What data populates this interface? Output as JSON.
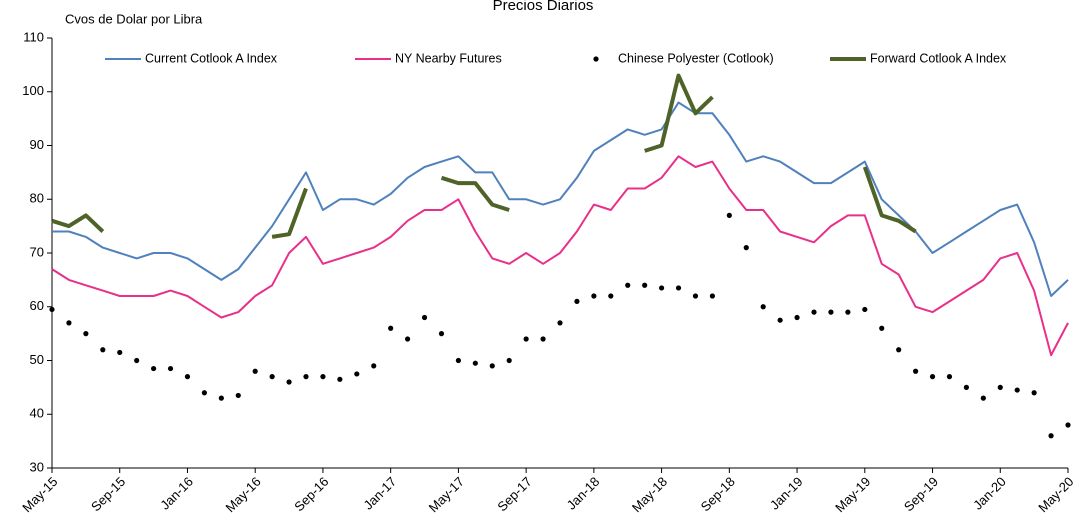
{
  "chart_data": {
    "type": "line",
    "title": "Precios Diarios",
    "y_label": "Cvos de Dolar por Libra",
    "categories": [
      "May-15",
      null,
      null,
      null,
      "Sep-15",
      null,
      null,
      null,
      "Jan-16",
      null,
      null,
      null,
      "May-16",
      null,
      null,
      null,
      "Sep-16",
      null,
      null,
      null,
      "Jan-17",
      null,
      null,
      null,
      "May-17",
      null,
      null,
      null,
      "Sep-17",
      null,
      null,
      null,
      "Jan-18",
      null,
      null,
      null,
      "May-18",
      null,
      null,
      null,
      "Sep-18",
      null,
      null,
      null,
      "Jan-19",
      null,
      null,
      null,
      "May-19",
      null,
      null,
      null,
      "Sep-19",
      null,
      null,
      null,
      "Jan-20",
      null,
      null,
      null,
      "May-20"
    ],
    "ylim": [
      30,
      110
    ],
    "yticks": [
      30,
      40,
      50,
      60,
      70,
      80,
      90,
      100,
      110
    ],
    "grid": false,
    "legend": "top",
    "series": [
      {
        "name": "Current Cotlook A Index",
        "color": "#4f81bd",
        "style": "line",
        "values": [
          74,
          74,
          73,
          71,
          70,
          69,
          70,
          70,
          69,
          67,
          65,
          67,
          71,
          75,
          80,
          85,
          78,
          80,
          80,
          79,
          81,
          84,
          86,
          87,
          88,
          85,
          85,
          80,
          80,
          79,
          80,
          84,
          89,
          91,
          93,
          92,
          93,
          98,
          96,
          96,
          92,
          87,
          88,
          87,
          85,
          83,
          83,
          85,
          87,
          80,
          77,
          74,
          70,
          72,
          74,
          76,
          78,
          79,
          72,
          62,
          65
        ]
      },
      {
        "name": "NY Nearby Futures",
        "color": "#e8308a",
        "style": "line",
        "values": [
          67,
          65,
          64,
          63,
          62,
          62,
          62,
          63,
          62,
          60,
          58,
          59,
          62,
          64,
          70,
          73,
          68,
          69,
          70,
          71,
          73,
          76,
          78,
          78,
          80,
          74,
          69,
          68,
          70,
          68,
          70,
          74,
          79,
          78,
          82,
          82,
          84,
          88,
          86,
          87,
          82,
          78,
          78,
          74,
          73,
          72,
          75,
          77,
          77,
          68,
          66,
          60,
          59,
          61,
          63,
          65,
          69,
          70,
          63,
          51,
          57
        ]
      },
      {
        "name": "Chinese Polyester (Cotlook)",
        "color": "#000000",
        "style": "points",
        "values": [
          59.5,
          57,
          55,
          52,
          51.5,
          50,
          48.5,
          48.5,
          47,
          44,
          43,
          43.5,
          48,
          47,
          46,
          47,
          47,
          46.5,
          47.5,
          49,
          56,
          54,
          58,
          55,
          50,
          49.5,
          49,
          50,
          54,
          54,
          57,
          61,
          62,
          62,
          64,
          64,
          63.5,
          63.5,
          62,
          62,
          77,
          71,
          60,
          57.5,
          58,
          59,
          59,
          59,
          59.5,
          56,
          52,
          48,
          47,
          47,
          45,
          43,
          45,
          44.5,
          44,
          36,
          38
        ]
      },
      {
        "name": "Forward Cotlook A Index",
        "color": "#4f6228",
        "style": "thick-line",
        "values": [
          76,
          75,
          77,
          74,
          null,
          null,
          null,
          null,
          null,
          null,
          null,
          null,
          null,
          73,
          73.5,
          82,
          null,
          null,
          null,
          null,
          null,
          null,
          null,
          84,
          83,
          83,
          79,
          78,
          null,
          null,
          null,
          null,
          null,
          null,
          null,
          89,
          90,
          103,
          96,
          99,
          null,
          null,
          null,
          null,
          null,
          null,
          null,
          null,
          86,
          77,
          76,
          74,
          null,
          null,
          null,
          null,
          null,
          null,
          null,
          null,
          null
        ]
      }
    ]
  }
}
